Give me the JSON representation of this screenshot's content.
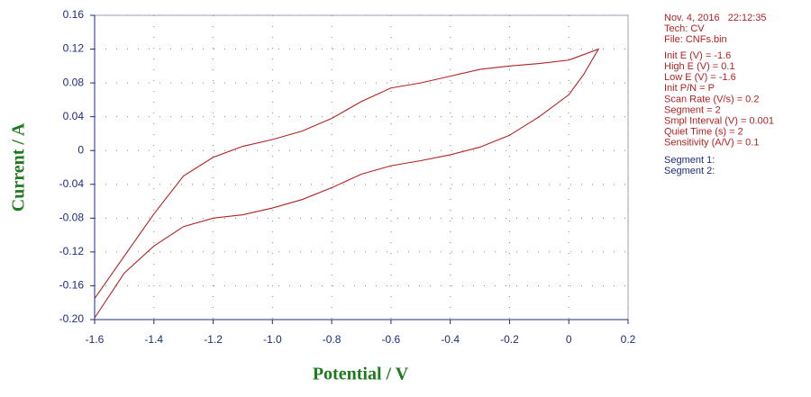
{
  "chart_data": {
    "type": "line",
    "xlabel": "Potential / V",
    "ylabel": "Current / A",
    "x": [
      -1.6,
      -1.5,
      -1.4,
      -1.3,
      -1.2,
      -1.1,
      -1.0,
      -0.9,
      -0.8,
      -0.7,
      -0.6,
      -0.5,
      -0.4,
      -0.3,
      -0.2,
      -0.1,
      0,
      0.1,
      0.05,
      0,
      -0.1,
      -0.2,
      -0.3,
      -0.4,
      -0.5,
      -0.6,
      -0.7,
      -0.8,
      -0.9,
      -1.0,
      -1.1,
      -1.2,
      -1.3,
      -1.4,
      -1.5,
      -1.6
    ],
    "values": [
      -0.175,
      -0.125,
      -0.075,
      -0.03,
      -0.008,
      0.005,
      0.013,
      0.023,
      0.038,
      0.058,
      0.074,
      0.08,
      0.088,
      0.096,
      0.1,
      0.103,
      0.107,
      0.12,
      0.09,
      0.066,
      0.04,
      0.018,
      0.004,
      -0.005,
      -0.012,
      -0.018,
      -0.028,
      -0.044,
      -0.058,
      -0.068,
      -0.076,
      -0.08,
      -0.09,
      -0.113,
      -0.145,
      -0.198
    ],
    "color": "#b22222",
    "xlim": [
      -1.6,
      0.2
    ],
    "ylim": [
      -0.2,
      0.16
    ],
    "xticks": [
      -1.6,
      -1.4,
      {
        "value": -1.2,
        "label": "-1.2"
      },
      {
        "value": -1,
        "label": "-1.0"
      },
      -0.8,
      -0.6,
      -0.4,
      -0.2,
      0,
      0.2
    ],
    "yticks": [
      {
        "value": -0.2,
        "label": "-0.20"
      },
      -0.16,
      -0.12,
      -0.08,
      -0.04,
      0,
      0.04,
      0.08,
      0.12,
      0.16
    ],
    "grid": true
  },
  "info": {
    "header": [
      "Nov. 4, 2016   22:12:35",
      "Tech: CV",
      "File: CNFs.bin"
    ],
    "params": [
      "Init E (V) = -1.6",
      "High E (V) = 0.1",
      "Low E (V) = -1.6",
      "Init P/N = P",
      "Scan Rate (V/s) = 0.2",
      "Segment = 2",
      "Smpl Interval (V) = 0.001",
      "Quiet Time (s) = 2",
      "Sensitivity (A/V) = 0.1"
    ],
    "segments": [
      "Segment 1:",
      "Segment 2:"
    ]
  }
}
